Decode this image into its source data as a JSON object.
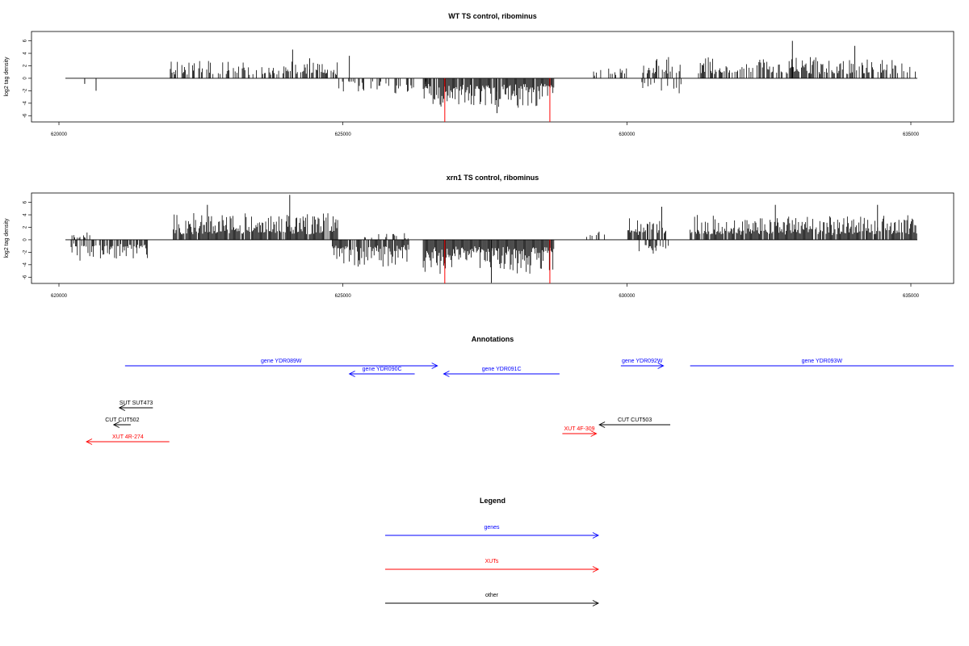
{
  "chart_data": [
    {
      "type": "bar",
      "title": "WT TS control, ribominus",
      "ylabel": "log2 tag density",
      "xlim": [
        620000,
        635000
      ],
      "ylim": [
        -7,
        7.5
      ],
      "x_ticks": [
        "620000",
        "625000",
        "630000",
        "635000"
      ],
      "y_ticks": [
        "6",
        "4",
        "2",
        "0",
        "-2",
        "-4",
        "-6"
      ],
      "grid": false,
      "baseline": 0,
      "series": [
        {
          "color": "#000000",
          "segments": [
            {
              "x": [
                620340,
                620340
              ],
              "y": -0.9
            },
            {
              "x": [
                620540,
                620540
              ],
              "y": -2.0
            },
            {
              "x": [
                621800,
                624800
              ],
              "y": 2.6,
              "density": 0.45
            },
            {
              "x": [
                624000,
                624000
              ],
              "y": 4.6
            },
            {
              "x": [
                624300,
                624300
              ],
              "y": 3.2
            },
            {
              "x": [
                625000,
                625000
              ],
              "y": 3.6
            },
            {
              "x": [
                624800,
                626600
              ],
              "y": -2.2,
              "density": 0.35
            },
            {
              "x": [
                626300,
                628600
              ],
              "y": -4.2,
              "density": 0.95
            },
            {
              "x": [
                627600,
                627600
              ],
              "y": -5.6
            },
            {
              "x": [
                629300,
                629900
              ],
              "y": 1.6,
              "density": 0.3
            },
            {
              "x": [
                630150,
                630850
              ],
              "y": 3.2,
              "density": 0.6
            },
            {
              "x": [
                630150,
                630850
              ],
              "y": -2.4,
              "density": 0.3
            },
            {
              "x": [
                631100,
                635000
              ],
              "y": 3.0,
              "density": 0.6
            },
            {
              "x": [
                632800,
                632800
              ],
              "y": 6.0
            },
            {
              "x": [
                633900,
                633900
              ],
              "y": 5.2
            }
          ]
        },
        {
          "color": "#ff0000",
          "spikes": [
            {
              "x": 626680,
              "y": -7.0
            },
            {
              "x": 628530,
              "y": -7.0
            }
          ]
        }
      ]
    },
    {
      "type": "bar",
      "title": "xrn1 TS control, ribominus",
      "ylabel": "log2 tag density",
      "xlim": [
        620000,
        635000
      ],
      "ylim": [
        -7,
        7.5
      ],
      "x_ticks": [
        "620000",
        "625000",
        "630000",
        "635000"
      ],
      "y_ticks": [
        "6",
        "4",
        "2",
        "0",
        "-2",
        "-4",
        "-6"
      ],
      "grid": false,
      "baseline": 0,
      "series": [
        {
          "color": "#000000",
          "segments": [
            {
              "x": [
                620100,
                620450
              ],
              "y": 1.2,
              "density": 0.3
            },
            {
              "x": [
                620100,
                621450
              ],
              "y": -3.0,
              "density": 0.6
            },
            {
              "x": [
                621900,
                624800
              ],
              "y": 4.0,
              "density": 0.95
            },
            {
              "x": [
                623950,
                623950
              ],
              "y": 7.2
            },
            {
              "x": [
                622500,
                622500
              ],
              "y": 5.6
            },
            {
              "x": [
                624700,
                626050
              ],
              "y": -4.0,
              "density": 0.85
            },
            {
              "x": [
                625250,
                626050
              ],
              "y": 1.0,
              "density": 0.3
            },
            {
              "x": [
                626300,
                628600
              ],
              "y": -5.0,
              "density": 1.0
            },
            {
              "x": [
                627500,
                627500
              ],
              "y": -6.9
            },
            {
              "x": [
                629100,
                629500
              ],
              "y": 2.0,
              "density": 0.3
            },
            {
              "x": [
                629900,
                630600
              ],
              "y": 3.8,
              "density": 0.8
            },
            {
              "x": [
                630500,
                630500
              ],
              "y": 5.3
            },
            {
              "x": [
                630100,
                630700
              ],
              "y": -2.2,
              "density": 0.3
            },
            {
              "x": [
                631000,
                635000
              ],
              "y": 3.6,
              "density": 0.9
            },
            {
              "x": [
                632500,
                632500
              ],
              "y": 5.6
            },
            {
              "x": [
                634300,
                634300
              ],
              "y": 5.6
            }
          ]
        },
        {
          "color": "#ff0000",
          "spikes": [
            {
              "x": 626680,
              "y": -7.0
            },
            {
              "x": 628530,
              "y": -7.0
            }
          ]
        }
      ]
    }
  ],
  "annotations": {
    "title": "Annotations",
    "features": [
      {
        "label": "gene YDR089W",
        "category": "gene",
        "color": "#0000ff",
        "start": 621050,
        "end": 626550,
        "direction": "right",
        "track": 0
      },
      {
        "label": "gene YDR090C",
        "category": "gene",
        "color": "#0000ff",
        "start": 625000,
        "end": 626150,
        "direction": "left",
        "track": 1
      },
      {
        "label": "gene YDR091C",
        "category": "gene",
        "color": "#0000ff",
        "start": 626660,
        "end": 628700,
        "direction": "left",
        "track": 1
      },
      {
        "label": "gene YDR092W",
        "category": "gene",
        "color": "#0000ff",
        "start": 629780,
        "end": 630530,
        "direction": "right",
        "track": 0
      },
      {
        "label": "gene YDR093W",
        "category": "gene",
        "color": "#0000ff",
        "start": 631000,
        "end": 635800,
        "direction": "right",
        "track": 0
      },
      {
        "label": "SUT SUT473",
        "category": "other",
        "color": "#000000",
        "start": 620950,
        "end": 621540,
        "direction": "left",
        "track": 2
      },
      {
        "label": "CUT CUT502",
        "category": "other",
        "color": "#000000",
        "start": 620850,
        "end": 621150,
        "direction": "left",
        "track": 3
      },
      {
        "label": "XUT 4R-274",
        "category": "xut",
        "color": "#ff0000",
        "start": 620370,
        "end": 621830,
        "direction": "left",
        "track": 4
      },
      {
        "label": "CUT CUT503",
        "category": "other",
        "color": "#000000",
        "start": 629400,
        "end": 630650,
        "direction": "left",
        "track": 3
      },
      {
        "label": "XUT 4F-309",
        "category": "xut",
        "color": "#ff0000",
        "start": 628750,
        "end": 629350,
        "direction": "right",
        "track": 5
      }
    ]
  },
  "legend": {
    "title": "Legend",
    "items": [
      {
        "label": "genes",
        "color": "#0000ff"
      },
      {
        "label": "XUTs",
        "color": "#ff0000"
      },
      {
        "label": "other",
        "color": "#000000"
      }
    ]
  }
}
